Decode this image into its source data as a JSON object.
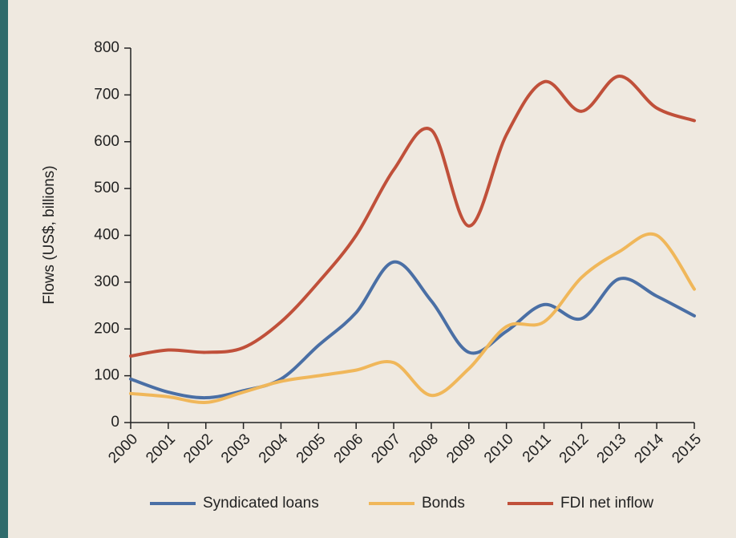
{
  "chart_data": {
    "type": "line",
    "ylabel": "Flows (US$, billions)",
    "x": [
      2000,
      2001,
      2002,
      2003,
      2004,
      2005,
      2006,
      2007,
      2008,
      2009,
      2010,
      2011,
      2012,
      2013,
      2014,
      2015
    ],
    "xlim": [
      2000,
      2015
    ],
    "xticks": [
      2000,
      2001,
      2002,
      2003,
      2004,
      2005,
      2006,
      2007,
      2008,
      2009,
      2010,
      2011,
      2012,
      2013,
      2014,
      2015
    ],
    "ylim": [
      0,
      800
    ],
    "yticks": [
      0,
      100,
      200,
      300,
      400,
      500,
      600,
      700,
      800
    ],
    "grid": false,
    "legend": "bottom",
    "series": [
      {
        "name": "Syndicated loans",
        "color": "#4a6fa5",
        "values": [
          93,
          65,
          53,
          68,
          93,
          165,
          235,
          343,
          260,
          150,
          195,
          252,
          222,
          307,
          270,
          228
        ]
      },
      {
        "name": "Bonds",
        "color": "#f0b75a",
        "values": [
          62,
          55,
          43,
          65,
          88,
          100,
          112,
          128,
          58,
          115,
          205,
          215,
          310,
          365,
          400,
          285
        ]
      },
      {
        "name": "FDI net inflow",
        "color": "#c0503a",
        "values": [
          142,
          155,
          150,
          160,
          215,
          300,
          400,
          540,
          625,
          420,
          615,
          728,
          665,
          740,
          672,
          645
        ]
      }
    ]
  }
}
